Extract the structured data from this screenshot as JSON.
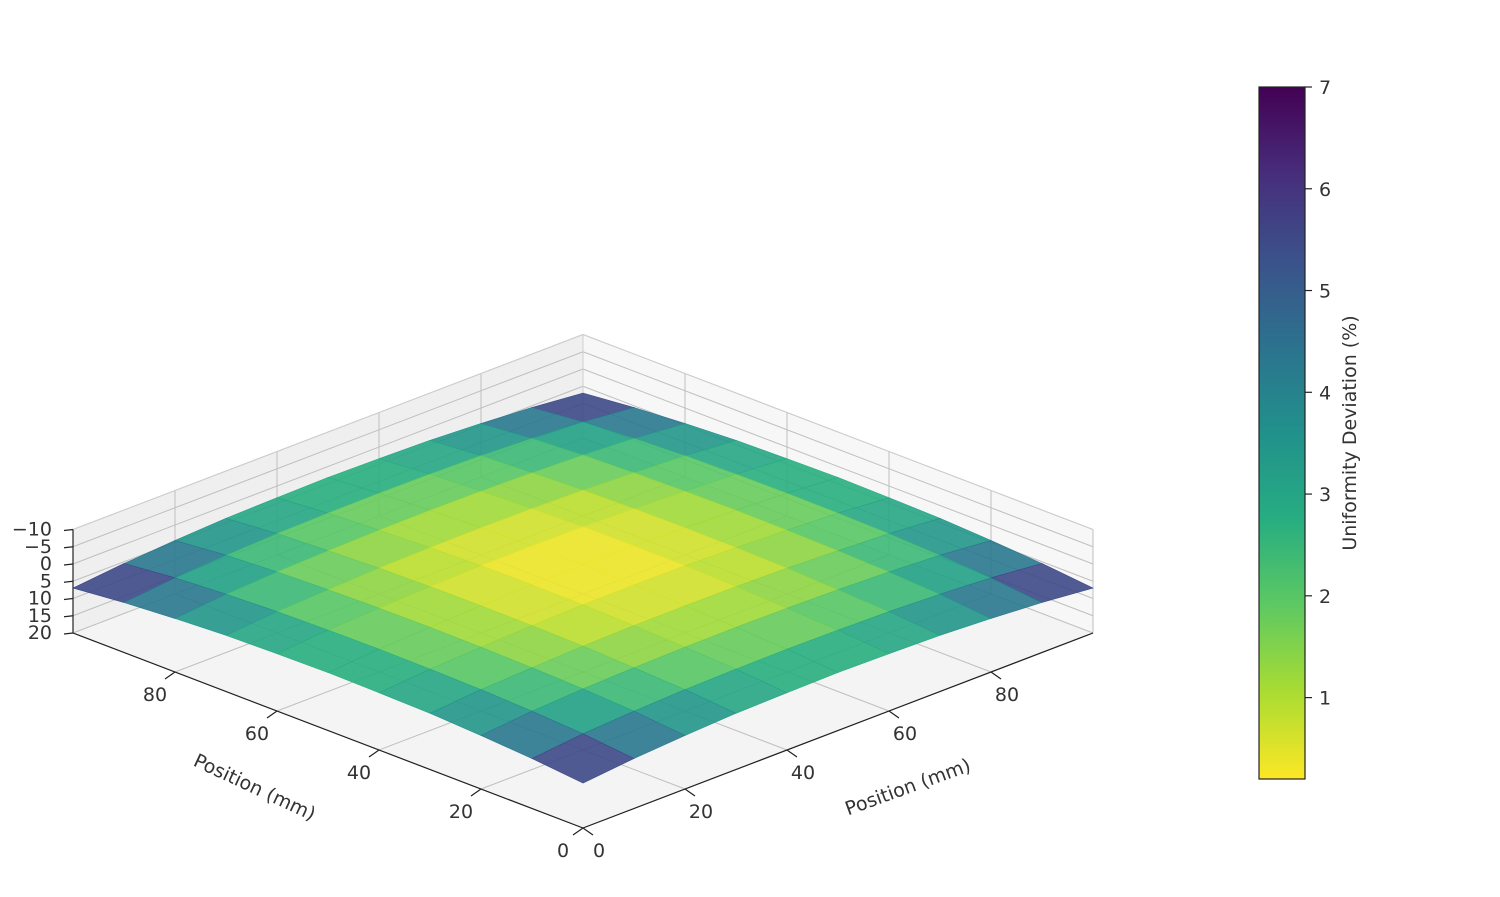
{
  "chart_data": {
    "type": "surface3d",
    "title": "",
    "x_axis": {
      "label": "Position (mm)",
      "ticks": [
        0,
        20,
        40,
        60,
        80
      ],
      "range": [
        0,
        100
      ]
    },
    "y_axis": {
      "label": "Position (mm)",
      "ticks": [
        0,
        20,
        40,
        60,
        80
      ],
      "range": [
        0,
        100
      ]
    },
    "z_axis": {
      "label": "",
      "ticks": [
        -10,
        -5,
        0,
        5,
        10,
        15,
        20
      ],
      "tick_labels": [
        "−10",
        "−5",
        "0",
        "5",
        "10",
        "15",
        "20"
      ],
      "range": [
        -10,
        20
      ],
      "inverted": true
    },
    "grid": true,
    "colormap": "viridis_r",
    "colorbar": {
      "label": "Uniformity Deviation (%)",
      "ticks": [
        1,
        2,
        3,
        4,
        5,
        6,
        7
      ],
      "range": [
        0.2,
        7.0
      ],
      "placement": "right"
    },
    "grid_positions": [
      0,
      10,
      20,
      30,
      40,
      50,
      60,
      70,
      80,
      90,
      100
    ],
    "z_values": [
      [
        7.0,
        5.5,
        4.5,
        3.7,
        3.4,
        3.2,
        3.4,
        3.7,
        4.5,
        5.5,
        7.0
      ],
      [
        5.5,
        4.0,
        3.1,
        2.5,
        2.2,
        2.1,
        2.2,
        2.5,
        3.1,
        4.0,
        5.5
      ],
      [
        4.5,
        3.1,
        2.3,
        1.8,
        1.5,
        1.4,
        1.5,
        1.8,
        2.3,
        3.1,
        4.5
      ],
      [
        3.7,
        2.5,
        1.8,
        1.2,
        0.9,
        0.8,
        0.9,
        1.2,
        1.8,
        2.5,
        3.7
      ],
      [
        3.4,
        2.2,
        1.5,
        0.9,
        0.5,
        0.4,
        0.5,
        0.9,
        1.5,
        2.2,
        3.4
      ],
      [
        3.2,
        2.1,
        1.4,
        0.8,
        0.4,
        0.2,
        0.4,
        0.8,
        1.4,
        2.1,
        3.2
      ],
      [
        3.4,
        2.2,
        1.5,
        0.9,
        0.5,
        0.4,
        0.5,
        0.9,
        1.5,
        2.2,
        3.4
      ],
      [
        3.7,
        2.5,
        1.8,
        1.2,
        0.9,
        0.8,
        0.9,
        1.2,
        1.8,
        2.5,
        3.7
      ],
      [
        4.5,
        3.1,
        2.3,
        1.8,
        1.5,
        1.4,
        1.5,
        1.8,
        2.3,
        3.1,
        4.5
      ],
      [
        5.5,
        4.0,
        3.1,
        2.5,
        2.2,
        2.1,
        2.2,
        2.5,
        3.1,
        4.0,
        5.5
      ],
      [
        7.0,
        5.5,
        4.5,
        3.7,
        3.4,
        3.2,
        3.4,
        3.7,
        4.5,
        5.5,
        7.0
      ]
    ]
  }
}
